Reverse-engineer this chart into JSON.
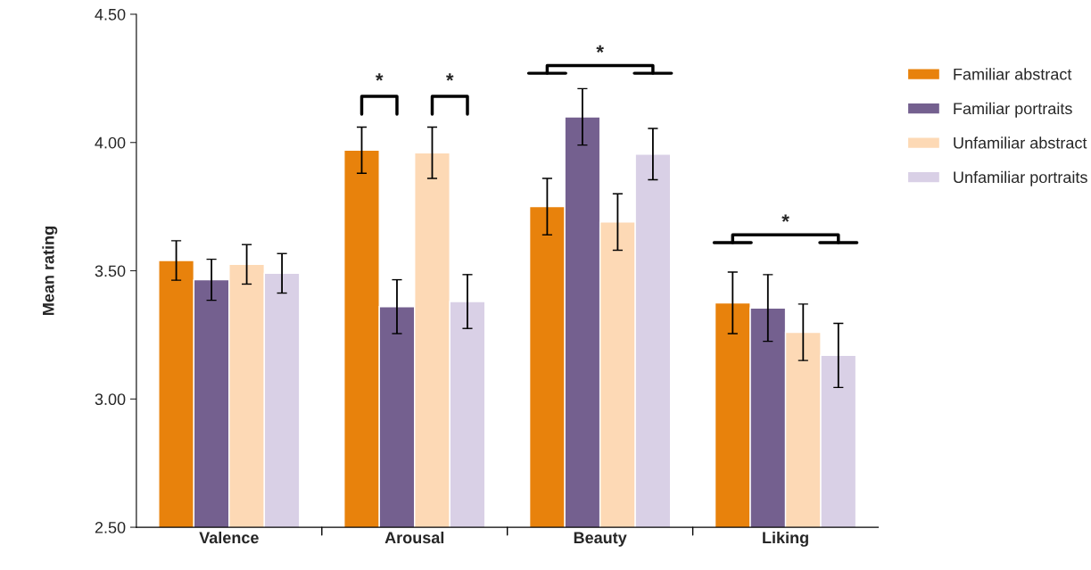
{
  "chart_data": {
    "type": "bar",
    "ylabel": "Mean rating",
    "categories": [
      "Valence",
      "Arousal",
      "Beauty",
      "Liking"
    ],
    "series": [
      {
        "name": "Familiar abstract",
        "color": "#e8820c",
        "values": [
          3.54,
          3.97,
          3.75,
          3.375
        ],
        "errors": [
          0.077,
          0.09,
          0.11,
          0.12
        ]
      },
      {
        "name": "Familiar portraits",
        "color": "#74608f",
        "values": [
          3.465,
          3.36,
          4.1,
          3.355
        ],
        "errors": [
          0.08,
          0.105,
          0.11,
          0.13
        ]
      },
      {
        "name": "Unfamiliar abstract",
        "color": "#fdd9b5",
        "values": [
          3.525,
          3.96,
          3.69,
          3.26
        ],
        "errors": [
          0.077,
          0.1,
          0.11,
          0.11
        ]
      },
      {
        "name": "Unfamiliar portraits",
        "color": "#d9d0e6",
        "values": [
          3.49,
          3.38,
          3.955,
          3.17
        ],
        "errors": [
          0.077,
          0.105,
          0.1,
          0.125
        ]
      }
    ],
    "ylim": [
      2.5,
      4.5
    ],
    "yticks": [
      {
        "value": 2.5,
        "label": "2.50"
      },
      {
        "value": 3.0,
        "label": "3.00"
      },
      {
        "value": 3.5,
        "label": "3.50"
      },
      {
        "value": 4.0,
        "label": "4.00"
      },
      {
        "value": 4.5,
        "label": "4.50"
      }
    ],
    "grid": false,
    "legend": "right",
    "annotations": [
      "*",
      "*",
      "*",
      "*"
    ]
  }
}
